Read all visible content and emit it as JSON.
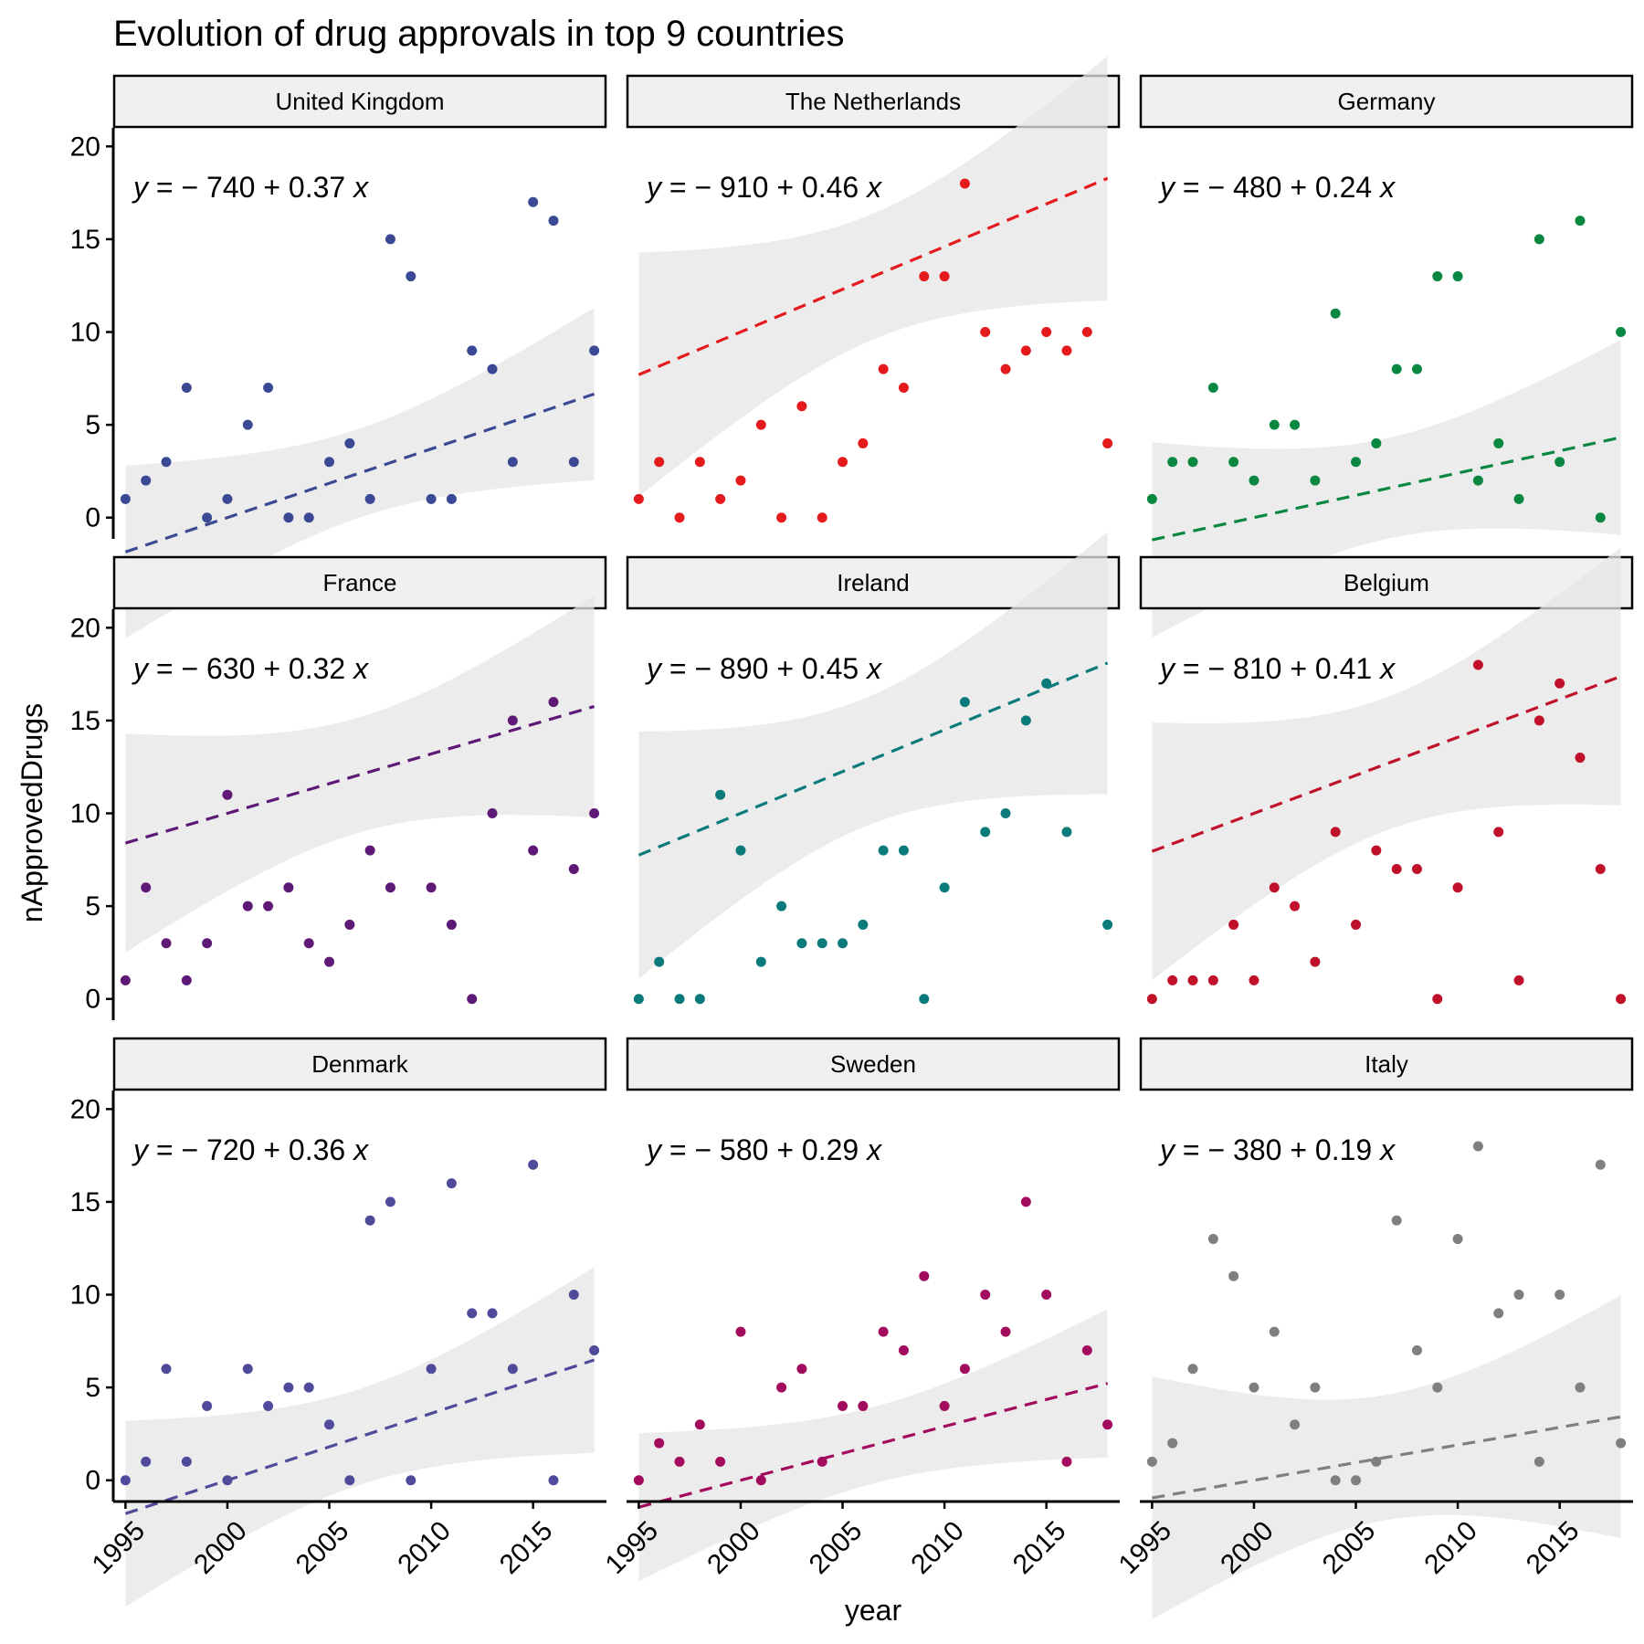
{
  "chart_data": {
    "type": "scatter",
    "title": "Evolution of drug approvals in top 9 countries",
    "xlabel": "year",
    "ylabel": "nApprovedDrugs",
    "x_ticks": [
      1995,
      2000,
      2005,
      2010,
      2015
    ],
    "y_ticks": [
      0,
      5,
      10,
      15,
      20
    ],
    "xlim": [
      1994.4,
      2018.6
    ],
    "ylim": [
      -0.9,
      21
    ],
    "grid": false,
    "legend": "none",
    "fit": "linear regression, dashed line with grey confidence band",
    "panels": [
      {
        "name": "United Kingdom",
        "color": "#3b4994",
        "equation": {
          "lhs": "y",
          "intercept": "− 740",
          "slope": "+ 0.37",
          "var": "x"
        },
        "fit_line": {
          "intercept": -740,
          "slope": 0.37
        },
        "points": [
          [
            1995,
            1
          ],
          [
            1996,
            2
          ],
          [
            1997,
            3
          ],
          [
            1998,
            7
          ],
          [
            1999,
            0
          ],
          [
            2000,
            1
          ],
          [
            2001,
            5
          ],
          [
            2002,
            7
          ],
          [
            2003,
            0
          ],
          [
            2004,
            0
          ],
          [
            2005,
            3
          ],
          [
            2006,
            4
          ],
          [
            2007,
            1
          ],
          [
            2008,
            15
          ],
          [
            2009,
            13
          ],
          [
            2010,
            1
          ],
          [
            2011,
            1
          ],
          [
            2012,
            9
          ],
          [
            2013,
            8
          ],
          [
            2014,
            3
          ],
          [
            2015,
            17
          ],
          [
            2016,
            16
          ],
          [
            2017,
            3
          ],
          [
            2018,
            9
          ]
        ]
      },
      {
        "name": "The Netherlands",
        "color": "#e41a1c",
        "equation": {
          "lhs": "y",
          "intercept": "− 910",
          "slope": "+ 0.46",
          "var": "x"
        },
        "fit_line": {
          "intercept": -910,
          "slope": 0.46
        },
        "points": [
          [
            1995,
            1
          ],
          [
            1996,
            3
          ],
          [
            1997,
            0
          ],
          [
            1998,
            3
          ],
          [
            1999,
            1
          ],
          [
            2000,
            2
          ],
          [
            2001,
            5
          ],
          [
            2002,
            0
          ],
          [
            2003,
            6
          ],
          [
            2004,
            0
          ],
          [
            2005,
            3
          ],
          [
            2006,
            4
          ],
          [
            2007,
            8
          ],
          [
            2008,
            7
          ],
          [
            2009,
            13
          ],
          [
            2010,
            13
          ],
          [
            2011,
            18
          ],
          [
            2012,
            10
          ],
          [
            2013,
            8
          ],
          [
            2014,
            9
          ],
          [
            2015,
            10
          ],
          [
            2016,
            9
          ],
          [
            2017,
            10
          ],
          [
            2018,
            4
          ]
        ]
      },
      {
        "name": "Germany",
        "color": "#0a8741",
        "equation": {
          "lhs": "y",
          "intercept": "− 480",
          "slope": "+ 0.24",
          "var": "x"
        },
        "fit_line": {
          "intercept": -480,
          "slope": 0.24
        },
        "points": [
          [
            1995,
            1
          ],
          [
            1996,
            3
          ],
          [
            1997,
            3
          ],
          [
            1998,
            7
          ],
          [
            1999,
            3
          ],
          [
            2000,
            2
          ],
          [
            2001,
            5
          ],
          [
            2002,
            5
          ],
          [
            2003,
            2
          ],
          [
            2004,
            11
          ],
          [
            2005,
            3
          ],
          [
            2006,
            4
          ],
          [
            2007,
            8
          ],
          [
            2008,
            8
          ],
          [
            2009,
            13
          ],
          [
            2010,
            13
          ],
          [
            2011,
            2
          ],
          [
            2012,
            4
          ],
          [
            2013,
            1
          ],
          [
            2014,
            15
          ],
          [
            2015,
            3
          ],
          [
            2016,
            16
          ],
          [
            2017,
            0
          ],
          [
            2018,
            10
          ]
        ]
      },
      {
        "name": "France",
        "color": "#5e1875",
        "equation": {
          "lhs": "y",
          "intercept": "− 630",
          "slope": "+ 0.32",
          "var": "x"
        },
        "fit_line": {
          "intercept": -630,
          "slope": 0.32
        },
        "points": [
          [
            1995,
            1
          ],
          [
            1996,
            6
          ],
          [
            1997,
            3
          ],
          [
            1998,
            1
          ],
          [
            1999,
            3
          ],
          [
            2000,
            11
          ],
          [
            2001,
            5
          ],
          [
            2002,
            5
          ],
          [
            2003,
            6
          ],
          [
            2004,
            3
          ],
          [
            2005,
            2
          ],
          [
            2006,
            4
          ],
          [
            2007,
            8
          ],
          [
            2008,
            6
          ],
          [
            2010,
            6
          ],
          [
            2011,
            4
          ],
          [
            2012,
            0
          ],
          [
            2013,
            10
          ],
          [
            2014,
            15
          ],
          [
            2015,
            8
          ],
          [
            2016,
            16
          ],
          [
            2017,
            7
          ],
          [
            2018,
            10
          ]
        ]
      },
      {
        "name": "Ireland",
        "color": "#0b7a7a",
        "equation": {
          "lhs": "y",
          "intercept": "− 890",
          "slope": "+ 0.45",
          "var": "x"
        },
        "fit_line": {
          "intercept": -890,
          "slope": 0.45
        },
        "points": [
          [
            1995,
            0
          ],
          [
            1996,
            2
          ],
          [
            1997,
            0
          ],
          [
            1998,
            0
          ],
          [
            1999,
            11
          ],
          [
            2000,
            8
          ],
          [
            2001,
            2
          ],
          [
            2002,
            5
          ],
          [
            2003,
            3
          ],
          [
            2004,
            3
          ],
          [
            2005,
            3
          ],
          [
            2006,
            4
          ],
          [
            2007,
            8
          ],
          [
            2008,
            8
          ],
          [
            2009,
            0
          ],
          [
            2010,
            6
          ],
          [
            2011,
            16
          ],
          [
            2012,
            9
          ],
          [
            2013,
            10
          ],
          [
            2014,
            15
          ],
          [
            2015,
            17
          ],
          [
            2016,
            9
          ],
          [
            2018,
            4
          ]
        ]
      },
      {
        "name": "Belgium",
        "color": "#c0102a",
        "equation": {
          "lhs": "y",
          "intercept": "− 810",
          "slope": "+ 0.41",
          "var": "x"
        },
        "fit_line": {
          "intercept": -810,
          "slope": 0.41
        },
        "points": [
          [
            1995,
            0
          ],
          [
            1996,
            1
          ],
          [
            1997,
            1
          ],
          [
            1998,
            1
          ],
          [
            1999,
            4
          ],
          [
            2000,
            1
          ],
          [
            2001,
            6
          ],
          [
            2002,
            5
          ],
          [
            2003,
            2
          ],
          [
            2004,
            9
          ],
          [
            2005,
            4
          ],
          [
            2006,
            8
          ],
          [
            2007,
            7
          ],
          [
            2008,
            7
          ],
          [
            2009,
            0
          ],
          [
            2010,
            6
          ],
          [
            2011,
            18
          ],
          [
            2012,
            9
          ],
          [
            2013,
            1
          ],
          [
            2014,
            15
          ],
          [
            2015,
            17
          ],
          [
            2016,
            13
          ],
          [
            2017,
            7
          ],
          [
            2018,
            0
          ]
        ]
      },
      {
        "name": "Denmark",
        "color": "#4f4a9a",
        "equation": {
          "lhs": "y",
          "intercept": "− 720",
          "slope": "+ 0.36",
          "var": "x"
        },
        "fit_line": {
          "intercept": -720,
          "slope": 0.36
        },
        "points": [
          [
            1995,
            0
          ],
          [
            1996,
            1
          ],
          [
            1997,
            6
          ],
          [
            1998,
            1
          ],
          [
            1999,
            4
          ],
          [
            2000,
            0
          ],
          [
            2001,
            6
          ],
          [
            2002,
            4
          ],
          [
            2003,
            5
          ],
          [
            2004,
            5
          ],
          [
            2005,
            3
          ],
          [
            2006,
            0
          ],
          [
            2007,
            14
          ],
          [
            2008,
            15
          ],
          [
            2009,
            0
          ],
          [
            2010,
            6
          ],
          [
            2011,
            16
          ],
          [
            2012,
            9
          ],
          [
            2013,
            9
          ],
          [
            2014,
            6
          ],
          [
            2015,
            17
          ],
          [
            2016,
            0
          ],
          [
            2017,
            10
          ],
          [
            2018,
            7
          ]
        ]
      },
      {
        "name": "Sweden",
        "color": "#a30c5e",
        "equation": {
          "lhs": "y",
          "intercept": "− 580",
          "slope": "+ 0.29",
          "var": "x"
        },
        "fit_line": {
          "intercept": -580,
          "slope": 0.29
        },
        "points": [
          [
            1995,
            0
          ],
          [
            1996,
            2
          ],
          [
            1997,
            1
          ],
          [
            1998,
            3
          ],
          [
            1999,
            1
          ],
          [
            2000,
            8
          ],
          [
            2001,
            0
          ],
          [
            2002,
            5
          ],
          [
            2003,
            6
          ],
          [
            2004,
            1
          ],
          [
            2005,
            4
          ],
          [
            2006,
            4
          ],
          [
            2007,
            8
          ],
          [
            2008,
            7
          ],
          [
            2009,
            11
          ],
          [
            2010,
            4
          ],
          [
            2011,
            6
          ],
          [
            2012,
            10
          ],
          [
            2013,
            8
          ],
          [
            2014,
            15
          ],
          [
            2015,
            10
          ],
          [
            2016,
            1
          ],
          [
            2017,
            7
          ],
          [
            2018,
            3
          ]
        ]
      },
      {
        "name": "Italy",
        "color": "#7f7f7f",
        "equation": {
          "lhs": "y",
          "intercept": "− 380",
          "slope": "+ 0.19",
          "var": "x"
        },
        "fit_line": {
          "intercept": -380,
          "slope": 0.19
        },
        "points": [
          [
            1995,
            1
          ],
          [
            1996,
            2
          ],
          [
            1997,
            6
          ],
          [
            1998,
            13
          ],
          [
            1999,
            11
          ],
          [
            2000,
            5
          ],
          [
            2001,
            8
          ],
          [
            2002,
            3
          ],
          [
            2003,
            5
          ],
          [
            2004,
            0
          ],
          [
            2005,
            0
          ],
          [
            2006,
            1
          ],
          [
            2007,
            14
          ],
          [
            2008,
            7
          ],
          [
            2009,
            5
          ],
          [
            2010,
            13
          ],
          [
            2011,
            18
          ],
          [
            2012,
            9
          ],
          [
            2013,
            10
          ],
          [
            2014,
            1
          ],
          [
            2015,
            10
          ],
          [
            2016,
            5
          ],
          [
            2017,
            17
          ],
          [
            2018,
            2
          ]
        ]
      }
    ]
  }
}
